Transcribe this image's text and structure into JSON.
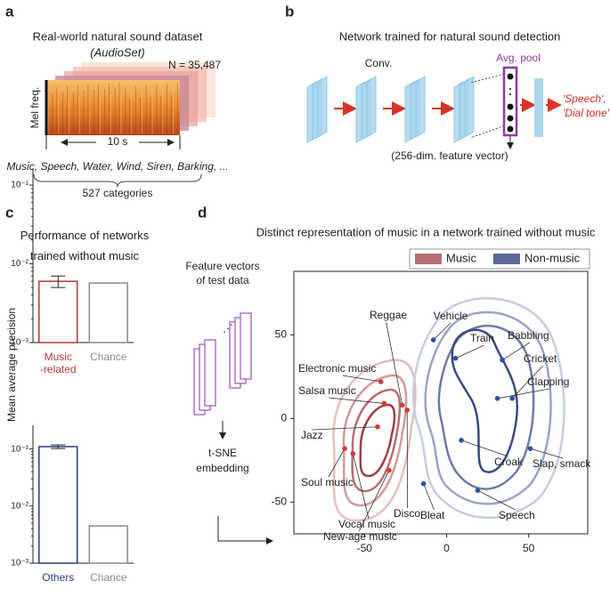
{
  "panels": {
    "a": {
      "letter": "a",
      "title": "Real-world natural sound dataset",
      "subtitle": "(AudioSet)",
      "n_label": "N = 35,487",
      "y_label": "Mel freq.",
      "duration": "10 s",
      "examples": "Music, Speech, Water, Wind, Siren, Barking, ...",
      "categories": "527 categories"
    },
    "b": {
      "letter": "b",
      "title": "Network trained for natural sound detection",
      "conv": "Conv.",
      "pool": "Avg. pool",
      "output1": "'Speech',",
      "output2": "'Dial tone'",
      "feature": "(256-dim. feature vector)"
    },
    "c": {
      "letter": "c",
      "title": "Performance of networks\ntrained without music",
      "y_label": "Mean average precision"
    },
    "d": {
      "letter": "d",
      "title": "Distinct representation of music in a network trained without music",
      "feature_label": "Feature vectors\nof test data",
      "embedding": "t-SNE\nembedding"
    }
  },
  "chart_data": [
    {
      "type": "bar",
      "log_scale": true,
      "categories": [
        "Music\n-related",
        "Chance"
      ],
      "values": [
        0.006,
        0.0057
      ],
      "errors": [
        0.001,
        null
      ],
      "colors": [
        "#b03a3a",
        "#8c8c8c"
      ],
      "ylim": [
        0.001,
        0.16
      ],
      "yticks": [
        {
          "value": 0.001,
          "label": "10⁻³"
        },
        {
          "value": 0.01,
          "label": "10⁻²"
        },
        {
          "value": 0.1,
          "label": "10⁻¹"
        }
      ]
    },
    {
      "type": "bar",
      "log_scale": true,
      "categories": [
        "Others",
        "Chance"
      ],
      "values": [
        0.11,
        0.0045
      ],
      "errors": [
        0.008,
        null
      ],
      "colors": [
        "#2c3c80",
        "#8c8c8c"
      ],
      "ylim": [
        0.001,
        0.26
      ],
      "yticks": [
        {
          "value": 0.001,
          "label": "10⁻³"
        },
        {
          "value": 0.01,
          "label": "10⁻²"
        },
        {
          "value": 0.1,
          "label": "10⁻¹"
        }
      ]
    },
    {
      "type": "scatter",
      "legend": "top-right",
      "xlim": [
        -93,
        86
      ],
      "ylim": [
        -69,
        88
      ],
      "xticks": [
        -50,
        0,
        50
      ],
      "yticks": [
        -50,
        0,
        50
      ],
      "legend_colors": [
        "#b86f73",
        "#5b6896"
      ],
      "series": [
        {
          "name": "Music",
          "color": "#d23a3a",
          "x": [
            -40,
            -38,
            -27,
            -24,
            -42,
            -62,
            -57,
            -35
          ],
          "values": [
            22,
            9,
            8,
            5,
            -5,
            -18,
            -21,
            -31
          ],
          "labels": [
            "Electronic music",
            "Salsa music",
            "Reggae",
            "Disco",
            "Jazz",
            "Soul music",
            "Vocal music",
            "New-age music"
          ]
        },
        {
          "name": "Non-music",
          "color": "#2c50a0",
          "x": [
            -8,
            5.5,
            34,
            40,
            31,
            51,
            9,
            19,
            -14
          ],
          "values": [
            47,
            36,
            35,
            12,
            12,
            -18,
            -13,
            -43,
            -39
          ],
          "labels": [
            "Vehicle",
            "Train",
            "Babbling",
            "Cricket",
            "Clapping",
            "Slap, smack",
            "Croak",
            "Speech",
            "Bleat"
          ]
        }
      ]
    }
  ]
}
